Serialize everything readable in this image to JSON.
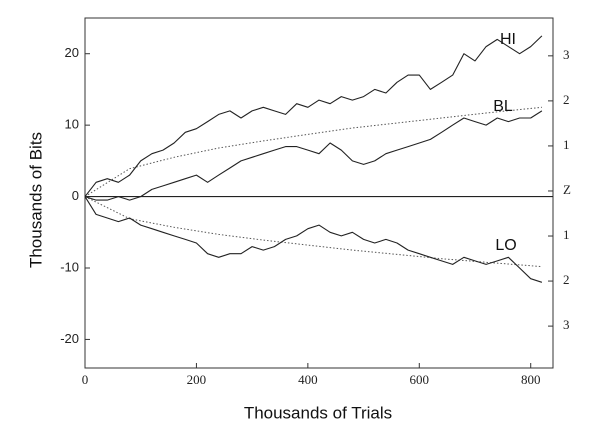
{
  "chart_data": {
    "type": "line",
    "x_label": "Thousands of Trials",
    "y_label": "Thousands of Bits",
    "x": [
      0,
      20,
      40,
      60,
      80,
      100,
      120,
      140,
      160,
      180,
      200,
      220,
      240,
      260,
      280,
      300,
      320,
      340,
      360,
      380,
      400,
      420,
      440,
      460,
      480,
      500,
      520,
      540,
      560,
      580,
      600,
      620,
      640,
      660,
      680,
      700,
      720,
      740,
      760,
      780,
      800,
      820
    ],
    "series": [
      {
        "name": "HI",
        "color": "#222222",
        "values": [
          0,
          2,
          2.5,
          2,
          3,
          5,
          6,
          6.5,
          7.5,
          9,
          9.5,
          10.5,
          11.5,
          12,
          11,
          12,
          12.5,
          12,
          11.5,
          13,
          12.5,
          13.5,
          13,
          14,
          13.5,
          14,
          15,
          14.5,
          16,
          17,
          17,
          15,
          16,
          17,
          20,
          19,
          21,
          22,
          21,
          20,
          21,
          22.5
        ]
      },
      {
        "name": "BL",
        "color": "#222222",
        "values": [
          0,
          -0.5,
          -0.5,
          0,
          -0.5,
          0,
          1,
          1.5,
          2,
          2.5,
          3,
          2,
          3,
          4,
          5,
          5.5,
          6,
          6.5,
          7,
          7,
          6.5,
          6,
          7.5,
          6.5,
          5,
          4.5,
          5,
          6,
          6.5,
          7,
          7.5,
          8,
          9,
          10,
          11,
          10.5,
          10,
          11,
          10.5,
          11,
          11,
          12
        ]
      },
      {
        "name": "LO",
        "color": "#222222",
        "values": [
          0,
          -2.5,
          -3,
          -3.5,
          -3,
          -4,
          -4.5,
          -5,
          -5.5,
          -6,
          -6.5,
          -8,
          -8.5,
          -8,
          -8,
          -7,
          -7.5,
          -7,
          -6,
          -5.5,
          -4.5,
          -4,
          -5,
          -5.5,
          -5,
          -6,
          -6.5,
          -6,
          -6.5,
          -7.5,
          -8,
          -8.5,
          -9,
          -9.5,
          -8.5,
          -9,
          -9.5,
          -9,
          -8.5,
          -10,
          -11.5,
          -12
        ]
      }
    ],
    "envelope": {
      "color": "#555555",
      "x": [
        0,
        80,
        160,
        240,
        320,
        400,
        480,
        560,
        640,
        720,
        820
      ],
      "upper": [
        0,
        3.9,
        5.5,
        6.8,
        7.8,
        8.7,
        9.6,
        10.3,
        11.0,
        11.7,
        12.5
      ],
      "lower": [
        0,
        -3.1,
        -4.3,
        -5.3,
        -6.1,
        -6.8,
        -7.5,
        -8.1,
        -8.7,
        -9.2,
        -9.8
      ]
    },
    "zero_line": true,
    "xlim": [
      0,
      840
    ],
    "ylim": [
      -24,
      25
    ],
    "xticks": [
      0,
      200,
      400,
      600,
      800
    ],
    "yticks": [
      20,
      10,
      0,
      -10,
      -20
    ],
    "y2lim": [
      -3.93,
      3.84
    ],
    "y2ticks": [
      3,
      2,
      1,
      {
        "value": 0,
        "label": "Z"
      },
      {
        "value": -1,
        "label": "1"
      },
      {
        "value": -2,
        "label": "2"
      },
      {
        "value": -3,
        "label": "3"
      }
    ]
  }
}
